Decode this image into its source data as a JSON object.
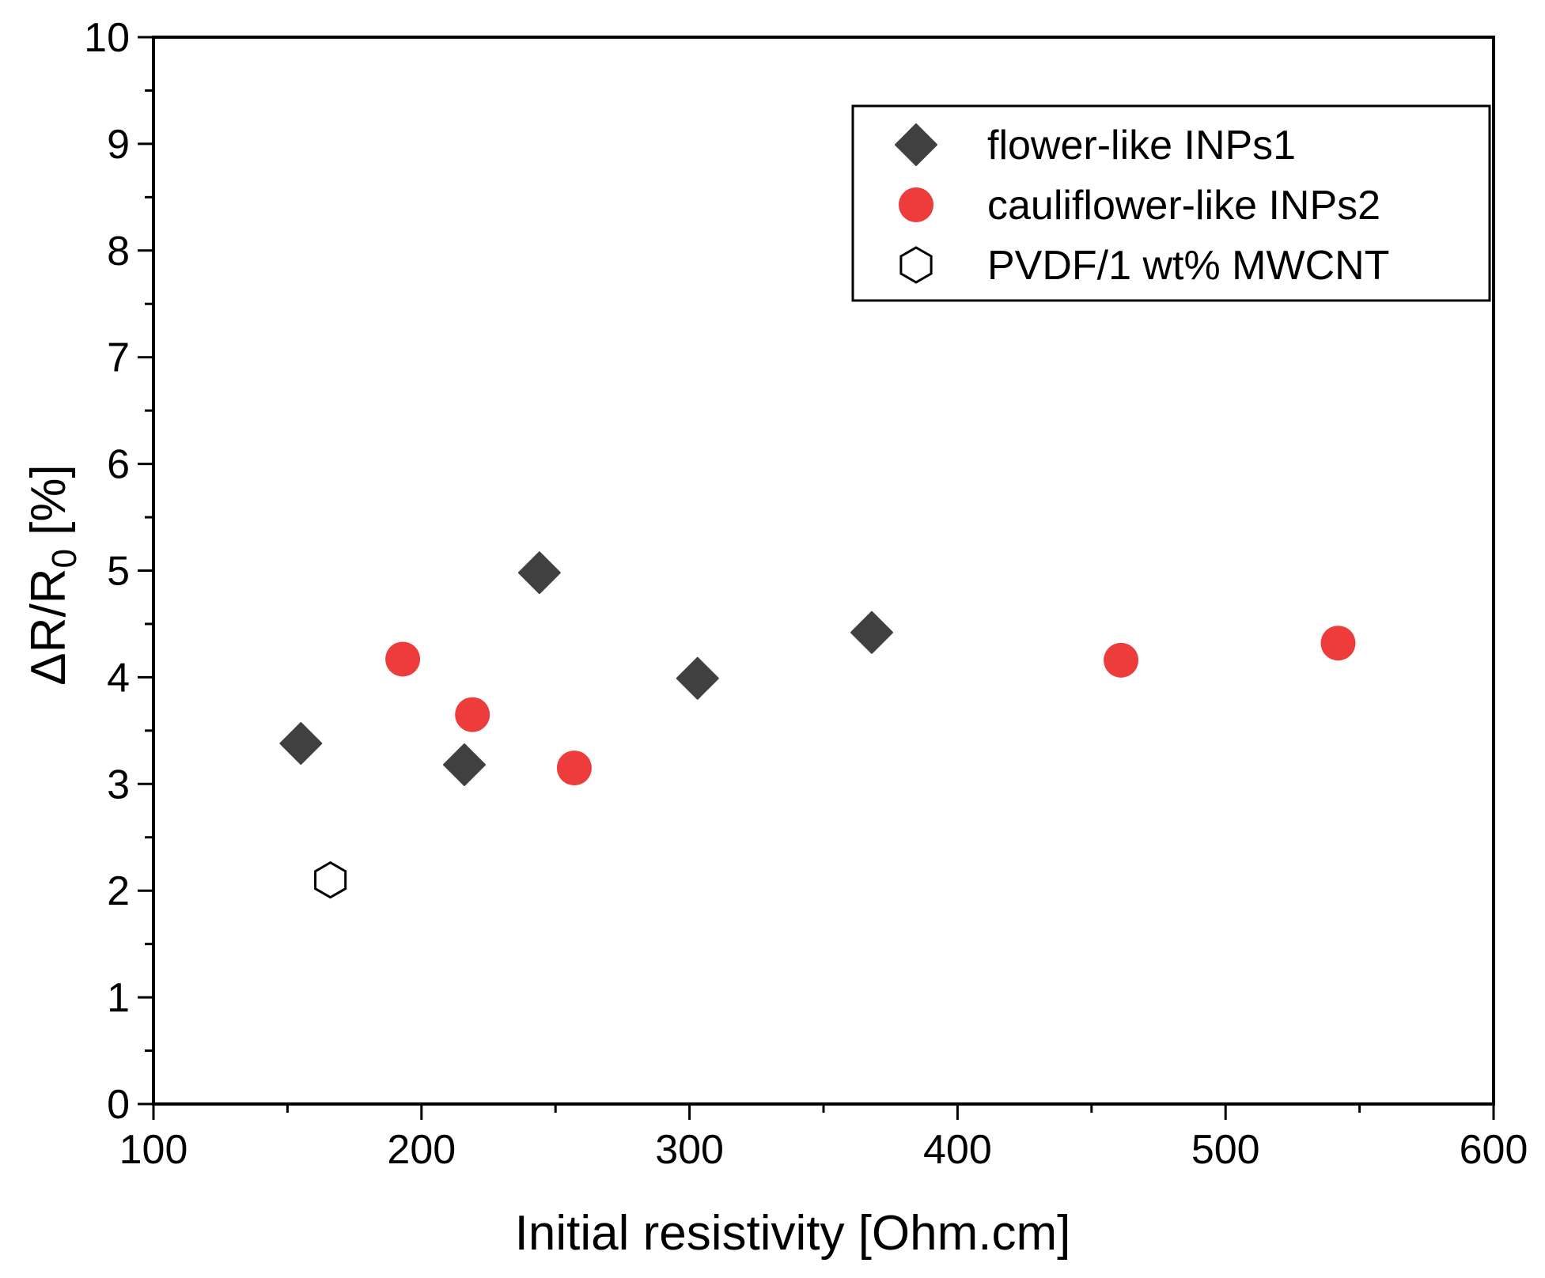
{
  "chart_data": {
    "type": "scatter",
    "xlabel": "Initial resistivity [Ohm.cm]",
    "ylabel": {
      "main": "ΔR/R",
      "subscript": "0",
      "suffix": " [%]"
    },
    "xlim": [
      100,
      600
    ],
    "ylim": [
      0,
      10
    ],
    "xticks": [
      "100",
      "200",
      "300",
      "400",
      "500",
      "600"
    ],
    "yticks": [
      "0",
      "1",
      "2",
      "3",
      "4",
      "5",
      "6",
      "7",
      "8",
      "9",
      "10"
    ],
    "grid": false,
    "legend_position": "top-right",
    "series": [
      {
        "name": "flower-like INPs1",
        "marker": "diamond",
        "color": "#404040",
        "filled": true,
        "points": [
          [
            155,
            3.38
          ],
          [
            216,
            3.18
          ],
          [
            244,
            4.98
          ],
          [
            303,
            3.99
          ],
          [
            368,
            4.42
          ]
        ]
      },
      {
        "name": "cauliflower-like INPs2",
        "marker": "circle",
        "color": "#ee3b3b",
        "filled": true,
        "points": [
          [
            193,
            4.17
          ],
          [
            219,
            3.65
          ],
          [
            257,
            3.15
          ],
          [
            461,
            4.16
          ],
          [
            542,
            4.32
          ]
        ]
      },
      {
        "name": "PVDF/1 wt% MWCNT",
        "marker": "hexagon",
        "color": "#000000",
        "filled": false,
        "points": [
          [
            166,
            2.1
          ]
        ]
      }
    ]
  }
}
